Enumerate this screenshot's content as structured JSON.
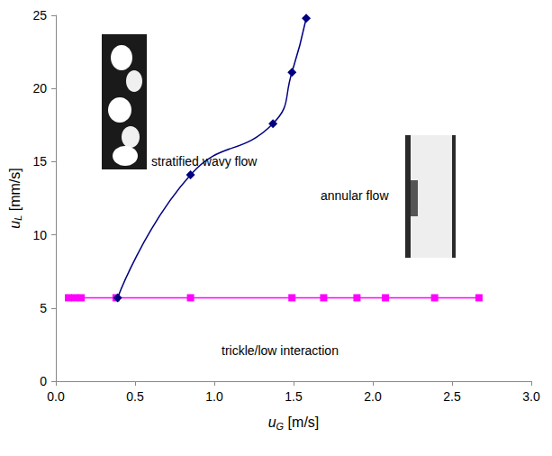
{
  "chart_data": {
    "type": "line",
    "x_label": "uG [m/s]",
    "y_label": "uL [mm/s]",
    "annotations": [
      "stratified wavy flow",
      "annular flow",
      "trickle/low interaction"
    ],
    "xlim": [
      0,
      3
    ],
    "xticks": [
      {
        "value": 0,
        "label": "0.0"
      },
      {
        "value": 0.5,
        "label": "0.5"
      },
      {
        "value": 1,
        "label": "1.0"
      },
      {
        "value": 1.5,
        "label": "1.5"
      },
      {
        "value": 2,
        "label": "2.0"
      },
      {
        "value": 2.5,
        "label": "2.5"
      },
      {
        "value": 3,
        "label": "3.0"
      }
    ],
    "ylim": [
      0,
      25
    ],
    "yticks": [
      0,
      5,
      10,
      15,
      20,
      25
    ],
    "grid": false,
    "series": [
      {
        "color": "#000080",
        "marker": "diamond",
        "line_style": "smooth",
        "x": [
          0.39,
          0.85,
          1.37,
          1.49,
          1.58
        ],
        "values": [
          5.7,
          14.1,
          17.6,
          21.1,
          24.8
        ]
      },
      {
        "color": "#ff00ff",
        "marker": "square",
        "line_style": "solid",
        "x": [
          0.08,
          0.12,
          0.16,
          0.38,
          0.85,
          1.49,
          1.69,
          1.9,
          2.08,
          2.39,
          2.67
        ],
        "values": [
          5.7,
          5.7,
          5.7,
          5.7,
          5.7,
          5.7,
          5.7,
          5.7,
          5.7,
          5.7,
          5.7
        ]
      }
    ]
  }
}
